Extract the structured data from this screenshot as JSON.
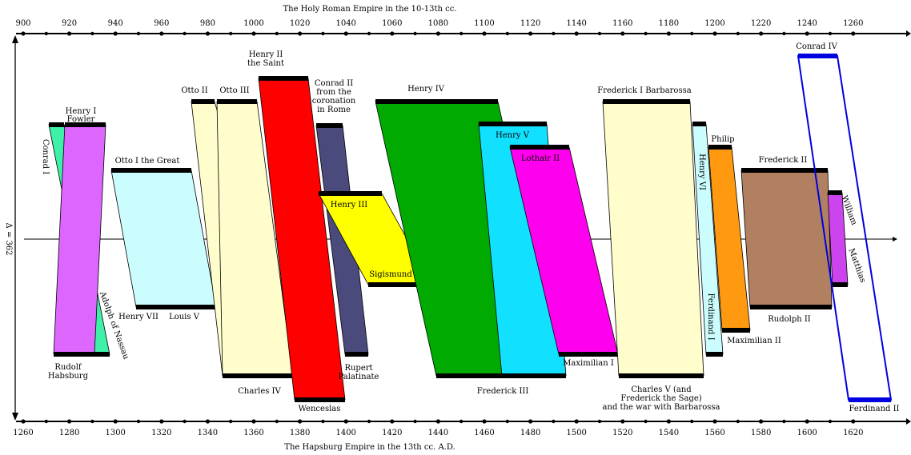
{
  "title_top": "The Holy Roman Empire in the 10-13th cc.",
  "title_bottom": "The Hapsburg Empire in the 13th cc. A.D.",
  "delta_label": "Δ = 362",
  "colors": {
    "axis": "#000000",
    "guide_line": "#000000",
    "segment_bar": "#000000",
    "outline_only": "#0000e0"
  },
  "top_axis": {
    "ticks": [
      "900",
      "920",
      "940",
      "960",
      "980",
      "1000",
      "1020",
      "1040",
      "1060",
      "1080",
      "1100",
      "1120",
      "1140",
      "1160",
      "1180",
      "1200",
      "1220",
      "1240",
      "1260"
    ]
  },
  "bottom_axis": {
    "ticks": [
      "1260",
      "1280",
      "1300",
      "1320",
      "1340",
      "1360",
      "1380",
      "1400",
      "1420",
      "1440",
      "1460",
      "1480",
      "1500",
      "1520",
      "1540",
      "1560",
      "1580",
      "1600",
      "1620"
    ]
  },
  "parallels": [
    {
      "id": "conrad-i",
      "color": "#3ef0a8",
      "top_label": [],
      "top_rotated": "Conrad I",
      "bottom_label": [],
      "bottom_rotated": "Adolph of Nassau"
    },
    {
      "id": "henry-i",
      "color": "#dd66ff",
      "top_label": [
        "Henry I",
        "Fowler"
      ],
      "bottom_label": [
        "Rudolf",
        "Habsburg"
      ]
    },
    {
      "id": "otto-i",
      "color": "#ccfdfe",
      "top_label": [
        "Otto I the Great"
      ],
      "bottom_label": [
        "Louis V"
      ]
    },
    {
      "id": "otto-ii",
      "color": "#fffdcc",
      "top_label": [
        "Otto II"
      ],
      "bottom_label": [
        "Charles IV"
      ]
    },
    {
      "id": "otto-iii",
      "color": "#fffdcc",
      "top_label": [
        "Otto III"
      ],
      "bottom_label": []
    },
    {
      "id": "henry-ii",
      "color": "#ff0000",
      "top_label": [
        "Henry II",
        "the Saint"
      ],
      "bottom_label": [
        "Wenceslas"
      ]
    },
    {
      "id": "conrad-ii",
      "color": "#4a4a7c",
      "top_label": [
        "Conrad II",
        "from the",
        "coronation",
        "in Rome"
      ],
      "bottom_label": [
        "Rupert",
        "Palatinate"
      ]
    },
    {
      "id": "henry-iii",
      "color": "#ffff00",
      "top_label": [
        "Henry III"
      ],
      "bottom_label": [
        "Sigismund"
      ]
    },
    {
      "id": "henry-iv",
      "color": "#00aa00",
      "top_label": [
        "Henry IV"
      ],
      "bottom_label": [
        "Frederick III"
      ]
    },
    {
      "id": "henry-v",
      "color": "#11e1ff",
      "top_label": [
        "Henry V"
      ],
      "bottom_label": []
    },
    {
      "id": "lothair-ii",
      "color": "#ff00ee",
      "top_label": [
        "Lothair II"
      ],
      "bottom_label": [
        "Maximilian I"
      ]
    },
    {
      "id": "barbarossa",
      "color": "#fffdcc",
      "top_label": [
        "Frederick I Barbarossa"
      ],
      "bottom_label": [
        "Charles V (and",
        "Frederick the Sage)",
        "and the war with Barbarossa"
      ]
    },
    {
      "id": "henry-vi",
      "color": "#ccfdfe",
      "top_rotated": "Henry VI",
      "bottom_rotated": "Ferdinand I",
      "top_label": [],
      "bottom_label": []
    },
    {
      "id": "philip",
      "color": "#ff9910",
      "top_label": [
        "Philip"
      ],
      "bottom_label": [
        "Maximilian II"
      ]
    },
    {
      "id": "frederick-ii",
      "color": "#b08060",
      "top_label": [
        "Frederick II"
      ],
      "bottom_label": [
        "Rudolph II"
      ]
    },
    {
      "id": "william",
      "color": "#cc44ee",
      "top_rotated": "William",
      "bottom_rotated": "Matthias",
      "top_label": [],
      "bottom_label": []
    },
    {
      "id": "conrad-iv",
      "color": "outline",
      "top_label": [
        "Conrad IV"
      ],
      "bottom_label": [
        "Ferdinand II"
      ]
    }
  ],
  "extra_labels": {
    "henry-vii": "Henry VII"
  }
}
